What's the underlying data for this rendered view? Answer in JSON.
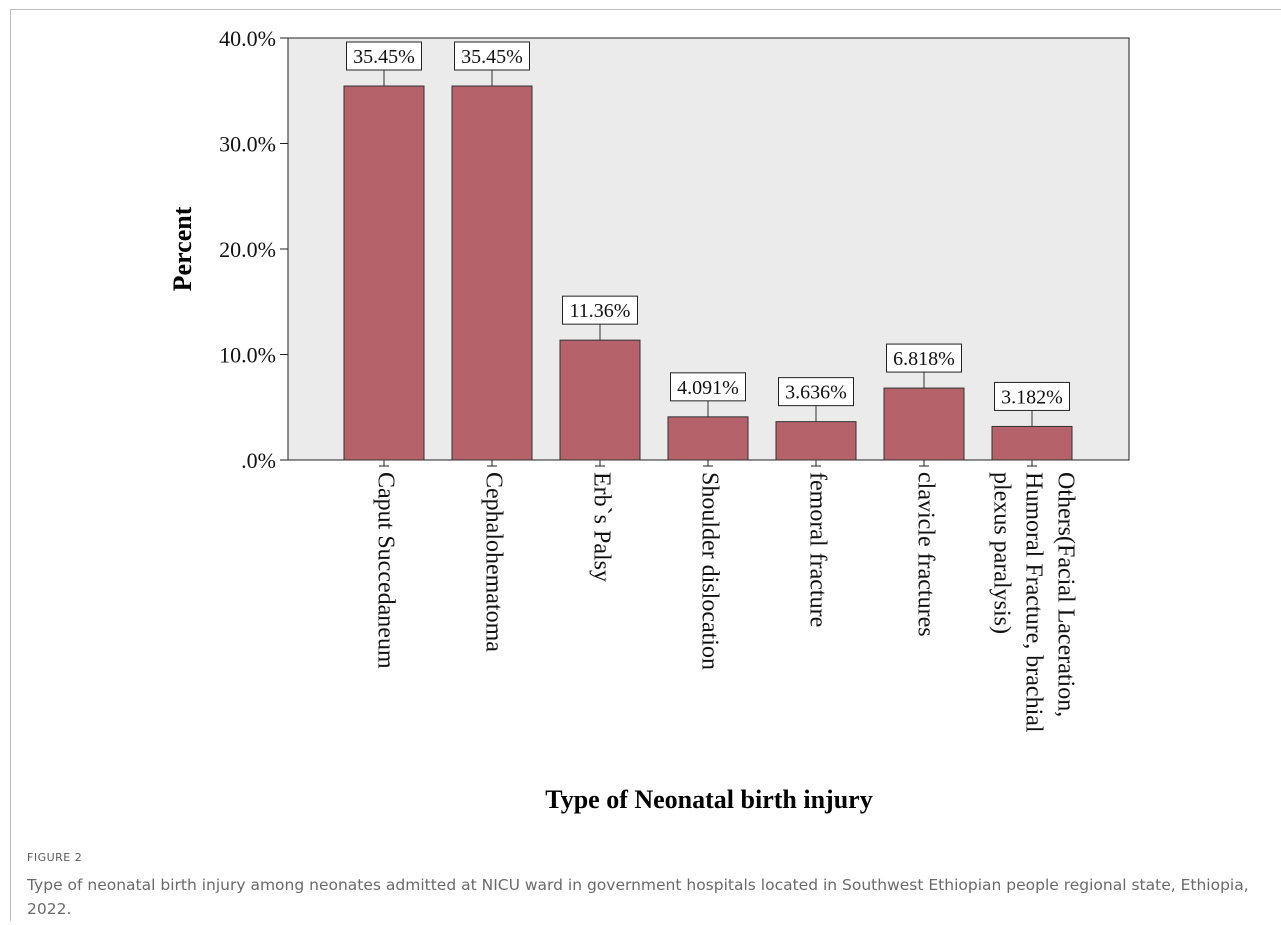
{
  "chart_data": {
    "type": "bar",
    "title": "",
    "xlabel": "Type of Neonatal birth injury",
    "ylabel": "Percent",
    "ylim": [
      0,
      40
    ],
    "y_ticks": [
      {
        "value": 0,
        "label": ".0%"
      },
      {
        "value": 10,
        "label": "10.0%"
      },
      {
        "value": 20,
        "label": "20.0%"
      },
      {
        "value": 30,
        "label": "30.0%"
      },
      {
        "value": 40,
        "label": "40.0%"
      }
    ],
    "categories": [
      [
        "Caput Succedaneum"
      ],
      [
        "Cephalohematoma"
      ],
      [
        "Erb`s Palsy"
      ],
      [
        "Shoulder dislocation"
      ],
      [
        "femoral fracture"
      ],
      [
        "clavicle fractures"
      ],
      [
        "Others(Facial Laceration,",
        "Humoral Fracture, brachial",
        "plexus paralysis)"
      ]
    ],
    "values": [
      35.45,
      35.45,
      11.36,
      4.091,
      3.636,
      6.818,
      3.182
    ],
    "data_labels": [
      "35.45%",
      "35.45%",
      "11.36%",
      "4.091%",
      "3.636%",
      "6.818%",
      "3.182%"
    ],
    "bar_color": "#b5626b",
    "plot_background": "#ebebeb",
    "grid": false,
    "legend": "none"
  },
  "caption": {
    "label": "FIGURE 2",
    "text": "Type of neonatal birth injury among neonates admitted at NICU ward in government hospitals located in Southwest Ethiopian people regional state, Ethiopia, 2022."
  }
}
